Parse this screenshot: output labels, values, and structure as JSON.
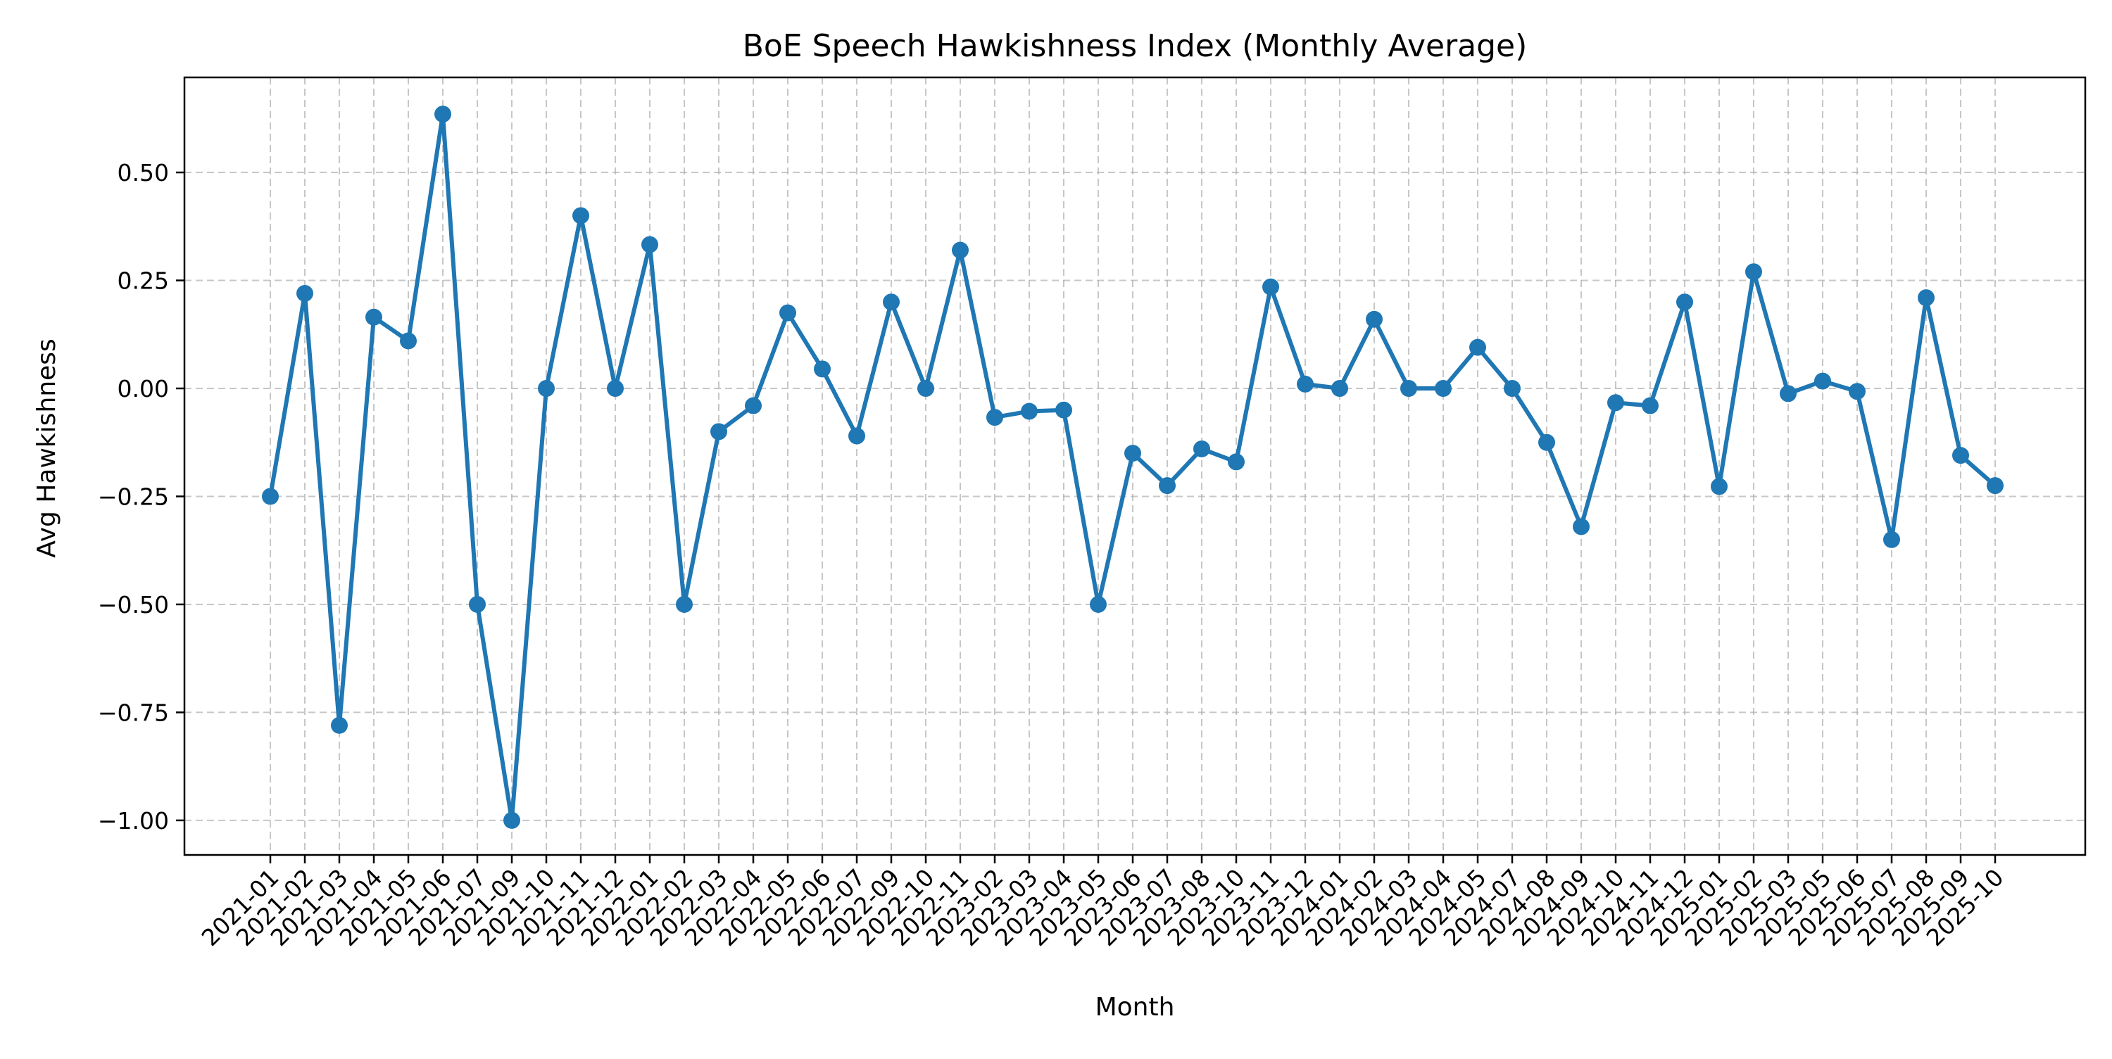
{
  "chart_data": {
    "type": "line",
    "title": "BoE Speech Hawkishness Index (Monthly Average)",
    "xlabel": "Month",
    "ylabel": "Avg Hawkishness",
    "ylim": [
      -1.08,
      0.72
    ],
    "yticks": [
      -1.0,
      -0.75,
      -0.5,
      -0.25,
      0.0,
      0.25,
      0.5
    ],
    "ytick_labels": [
      "−1.00",
      "−0.75",
      "−0.50",
      "−0.25",
      "0.00",
      "0.25",
      "0.50"
    ],
    "grid": true,
    "line_color": "#1f77b4",
    "categories": [
      "2021-01",
      "2021-02",
      "2021-03",
      "2021-04",
      "2021-05",
      "2021-06",
      "2021-07",
      "2021-09",
      "2021-10",
      "2021-11",
      "2021-12",
      "2022-01",
      "2022-02",
      "2022-03",
      "2022-04",
      "2022-05",
      "2022-06",
      "2022-07",
      "2022-09",
      "2022-10",
      "2022-11",
      "2023-02",
      "2023-03",
      "2023-04",
      "2023-05",
      "2023-06",
      "2023-07",
      "2023-08",
      "2023-10",
      "2023-11",
      "2023-12",
      "2024-01",
      "2024-02",
      "2024-03",
      "2024-04",
      "2024-05",
      "2024-07",
      "2024-08",
      "2024-09",
      "2024-10",
      "2024-11",
      "2024-12",
      "2025-01",
      "2025-02",
      "2025-03",
      "2025-05",
      "2025-06",
      "2025-07",
      "2025-08",
      "2025-09",
      "2025-10"
    ],
    "series": [
      {
        "values": [
          -0.25,
          0.22,
          -0.78,
          0.165,
          0.11,
          0.635,
          -0.5,
          -1.0,
          0.0,
          0.4,
          0.0,
          0.333,
          -0.5,
          -0.1,
          -0.04,
          0.175,
          0.045,
          -0.11,
          0.2,
          0.0,
          0.32,
          -0.067,
          -0.053,
          -0.05,
          -0.5,
          -0.15,
          -0.225,
          -0.14,
          -0.17,
          0.235,
          0.01,
          0.0,
          0.16,
          0.0,
          0.0,
          0.095,
          0.0,
          -0.125,
          -0.32,
          -0.033,
          -0.04,
          0.2,
          -0.227,
          0.27,
          -0.012,
          0.017,
          -0.007,
          -0.35,
          0.21,
          -0.155,
          -0.225
        ]
      }
    ]
  }
}
